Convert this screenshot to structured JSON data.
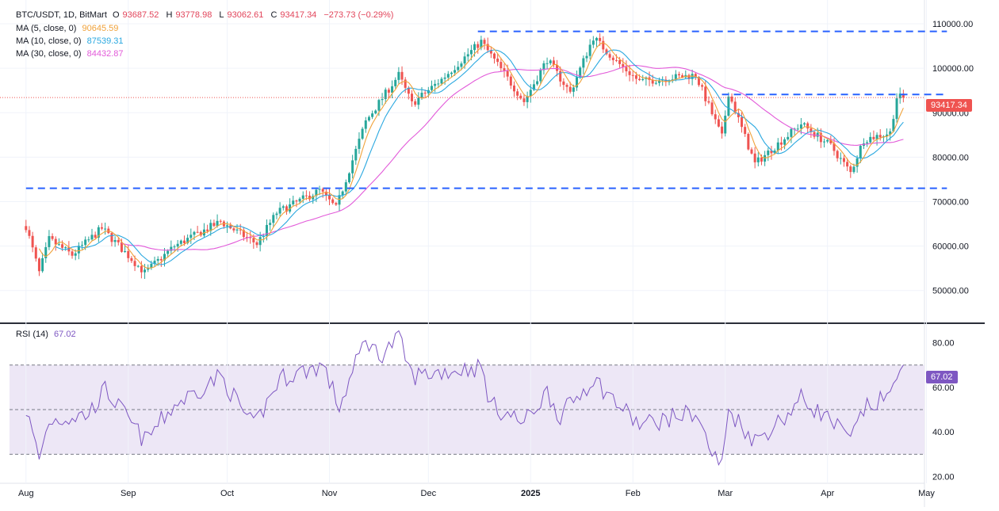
{
  "header": {
    "symbol": "BTC/USDT, 1D, BitMart",
    "open_label": "O",
    "open": "93687.52",
    "high_label": "H",
    "high": "93778.98",
    "low_label": "L",
    "low": "93062.61",
    "close_label": "C",
    "close": "93417.34",
    "change": "−273.73 (−0.29%)"
  },
  "ma": [
    {
      "label": "MA (5, close, 0)",
      "value": "90645.59",
      "color": "#f0a23a"
    },
    {
      "label": "MA (10, close, 0)",
      "value": "87539.31",
      "color": "#2aa8e0"
    },
    {
      "label": "MA (30, close, 0)",
      "value": "84432.87",
      "color": "#e25ad9"
    }
  ],
  "rsi": {
    "label": "RSI (14)",
    "value": "67.02",
    "color": "#7e57c2"
  },
  "price_badge": "93417.34",
  "rsi_badge": "67.02",
  "colors": {
    "up": "#26a69a",
    "down": "#ef5350",
    "level": "#2962ff",
    "rsi_band": "#ede7f6"
  },
  "chart_data": [
    {
      "type": "candlestick",
      "yticks": [
        "110000.00",
        "100000.00",
        "90000.00",
        "80000.00",
        "70000.00",
        "60000.00",
        "50000.00"
      ],
      "ylim": [
        43000,
        112500
      ],
      "xticks": [
        "Aug",
        "Sep",
        "Oct",
        "Nov",
        "Dec",
        "2025",
        "Feb",
        "Mar",
        "Apr",
        "May"
      ],
      "last_close": 93417.34,
      "levels": [
        {
          "from": "2024-12-16",
          "to": "2025-04-30",
          "value": 108300
        },
        {
          "from": "2025-02-28",
          "to": "2025-04-30",
          "value": 94100
        },
        {
          "from": "2024-08-01",
          "to": "2025-04-30",
          "value": 73000
        }
      ],
      "ma_latest": {
        "ma5": 90645.59,
        "ma10": 87539.31,
        "ma30": 84432.87
      },
      "close_anchors": [
        [
          "2024-08-01",
          64500
        ],
        [
          "2024-08-05",
          54000
        ],
        [
          "2024-08-08",
          61500
        ],
        [
          "2024-08-15",
          58000
        ],
        [
          "2024-08-24",
          64000
        ],
        [
          "2024-09-06",
          54000
        ],
        [
          "2024-09-15",
          60000
        ],
        [
          "2024-09-29",
          65500
        ],
        [
          "2024-10-10",
          60500
        ],
        [
          "2024-10-16",
          67500
        ],
        [
          "2024-10-29",
          72500
        ],
        [
          "2024-11-03",
          68500
        ],
        [
          "2024-11-12",
          88000
        ],
        [
          "2024-11-22",
          98500
        ],
        [
          "2024-11-26",
          92000
        ],
        [
          "2024-12-05",
          97500
        ],
        [
          "2024-12-17",
          106000
        ],
        [
          "2024-12-30",
          92500
        ],
        [
          "2025-01-06",
          102000
        ],
        [
          "2025-01-13",
          94500
        ],
        [
          "2025-01-20",
          107000
        ],
        [
          "2025-01-27",
          101500
        ],
        [
          "2025-02-03",
          97000
        ],
        [
          "2025-02-20",
          98500
        ],
        [
          "2025-02-28",
          84500
        ],
        [
          "2025-03-02",
          94500
        ],
        [
          "2025-03-10",
          78500
        ],
        [
          "2025-03-24",
          87500
        ],
        [
          "2025-04-02",
          82500
        ],
        [
          "2025-04-08",
          76500
        ],
        [
          "2025-04-12",
          84000
        ],
        [
          "2025-04-20",
          85500
        ],
        [
          "2025-04-22",
          93500
        ],
        [
          "2025-04-24",
          93417
        ]
      ],
      "rsi_yticks": [
        "80.00",
        "60.00",
        "40.00",
        "20.00"
      ],
      "rsi_ylim": [
        17,
        88
      ],
      "rsi_bands": [
        30,
        50,
        70
      ],
      "rsi_anchors": [
        [
          "2024-08-01",
          50
        ],
        [
          "2024-08-05",
          28
        ],
        [
          "2024-08-08",
          45
        ],
        [
          "2024-08-20",
          48
        ],
        [
          "2024-08-25",
          59
        ],
        [
          "2024-09-06",
          36
        ],
        [
          "2024-09-15",
          52
        ],
        [
          "2024-09-29",
          65
        ],
        [
          "2024-10-09",
          42
        ],
        [
          "2024-10-17",
          64
        ],
        [
          "2024-10-30",
          70
        ],
        [
          "2024-11-04",
          51
        ],
        [
          "2024-11-12",
          82
        ],
        [
          "2024-11-16",
          74
        ],
        [
          "2024-11-22",
          82
        ],
        [
          "2024-11-26",
          65
        ],
        [
          "2024-12-05",
          67
        ],
        [
          "2024-12-17",
          69
        ],
        [
          "2024-12-20",
          52
        ],
        [
          "2024-12-30",
          44
        ],
        [
          "2025-01-06",
          58
        ],
        [
          "2025-01-10",
          47
        ],
        [
          "2025-01-20",
          64
        ],
        [
          "2025-01-27",
          53
        ],
        [
          "2025-02-03",
          43
        ],
        [
          "2025-02-20",
          49
        ],
        [
          "2025-02-25",
          30
        ],
        [
          "2025-02-28",
          25
        ],
        [
          "2025-03-02",
          50
        ],
        [
          "2025-03-10",
          36
        ],
        [
          "2025-03-20",
          48
        ],
        [
          "2025-03-24",
          55
        ],
        [
          "2025-04-02",
          45
        ],
        [
          "2025-04-08",
          36
        ],
        [
          "2025-04-12",
          50
        ],
        [
          "2025-04-20",
          56
        ],
        [
          "2025-04-22",
          68
        ],
        [
          "2025-04-24",
          67
        ]
      ]
    }
  ]
}
